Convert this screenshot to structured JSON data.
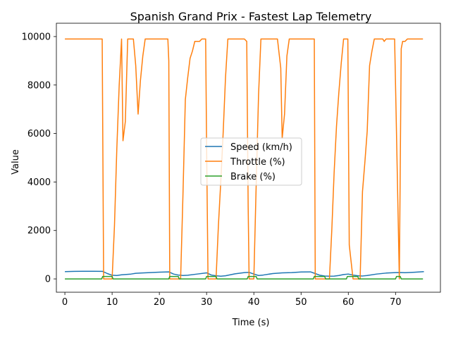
{
  "chart_data": {
    "type": "line",
    "title": "Spanish Grand Prix - Fastest Lap Telemetry",
    "xlabel": "Time (s)",
    "ylabel": "Value",
    "xlim": [
      -1.8,
      79.5
    ],
    "ylim": [
      -550,
      10550
    ],
    "xticks": [
      0,
      10,
      20,
      30,
      40,
      50,
      60,
      70
    ],
    "yticks": [
      0,
      2000,
      4000,
      6000,
      8000,
      10000
    ],
    "grid": false,
    "legend_position": "center-right",
    "series": [
      {
        "name": "Speed (km/h)",
        "color": "#1f77b4",
        "x": [
          0,
          2,
          4,
          6,
          8,
          9,
          10,
          11,
          12,
          14,
          15,
          16,
          18,
          20,
          22,
          23,
          24,
          25,
          26,
          28,
          30,
          31,
          32,
          33,
          34,
          36,
          38,
          39,
          40,
          41,
          42,
          44,
          46,
          48,
          50,
          52,
          53,
          54,
          55,
          56,
          57,
          58,
          59,
          60,
          61,
          62,
          63,
          64,
          66,
          68,
          70,
          71,
          72,
          74,
          76
        ],
        "y": [
          300,
          310,
          315,
          315,
          310,
          220,
          150,
          140,
          170,
          200,
          230,
          240,
          260,
          280,
          290,
          200,
          160,
          140,
          150,
          200,
          250,
          160,
          130,
          110,
          130,
          210,
          260,
          270,
          200,
          140,
          160,
          220,
          250,
          260,
          285,
          290,
          220,
          150,
          120,
          110,
          115,
          140,
          180,
          200,
          160,
          130,
          120,
          140,
          200,
          240,
          260,
          265,
          255,
          275,
          300
        ]
      },
      {
        "name": "Throttle (%)",
        "color": "#ff7f0e",
        "x": [
          0,
          2,
          4,
          6,
          7.9,
          8.2,
          9,
          10,
          10.5,
          11,
          11.5,
          12,
          12.3,
          12.8,
          13.3,
          14,
          14.5,
          15,
          15.5,
          16,
          16.5,
          17,
          18,
          19,
          20,
          21,
          21.8,
          22,
          22.2,
          23,
          24,
          24.5,
          25,
          25.5,
          26,
          26.5,
          27,
          27.5,
          28,
          28.5,
          29,
          29.5,
          29.8,
          30,
          30.3,
          31,
          32,
          32.5,
          33,
          33.5,
          34,
          34.5,
          35,
          36,
          37,
          38,
          38.5,
          38.8,
          39,
          40,
          40.5,
          41,
          41.5,
          42,
          42.5,
          43,
          44,
          45,
          45.7,
          46,
          46.5,
          47,
          47.5,
          48,
          49,
          50,
          51,
          52,
          52.8,
          53,
          54,
          55,
          55.5,
          56,
          56.5,
          57,
          57.5,
          58,
          58.5,
          59,
          59.5,
          59.9,
          60.2,
          61,
          62,
          62.5,
          63,
          63.5,
          64,
          64.5,
          65,
          65.5,
          66,
          67,
          67.3,
          67.6,
          68,
          69,
          69.8,
          70.1,
          70.5,
          70.8,
          71.2,
          71.5,
          72,
          72.5,
          73,
          74,
          75,
          75.8
        ],
        "y": [
          9900,
          9900,
          9900,
          9900,
          9900,
          0,
          0,
          0,
          2200,
          5400,
          8000,
          9900,
          5700,
          6500,
          9900,
          9900,
          9900,
          8800,
          6800,
          8200,
          9200,
          9900,
          9900,
          9900,
          9900,
          9900,
          9900,
          9000,
          0,
          0,
          0,
          0,
          3500,
          7400,
          8300,
          9100,
          9400,
          9800,
          9800,
          9800,
          9900,
          9900,
          9900,
          5500,
          0,
          0,
          0,
          2200,
          4000,
          6000,
          8300,
          9900,
          9900,
          9900,
          9900,
          9900,
          9800,
          3000,
          0,
          0,
          3900,
          7600,
          9900,
          9900,
          9900,
          9900,
          9900,
          9900,
          8700,
          5800,
          6800,
          9200,
          9900,
          9900,
          9900,
          9900,
          9900,
          9900,
          9900,
          0,
          0,
          0,
          0,
          0,
          2000,
          4400,
          6300,
          7700,
          8900,
          9900,
          9900,
          9900,
          1400,
          0,
          0,
          0,
          3600,
          4800,
          6100,
          8800,
          9400,
          9900,
          9900,
          9900,
          9900,
          9800,
          9900,
          9900,
          9900,
          7000,
          3000,
          0,
          9500,
          9800,
          9800,
          9900,
          9900,
          9900,
          9900,
          9900
        ]
      },
      {
        "name": "Brake (%)",
        "color": "#2ca02c",
        "x": [
          0,
          7.8,
          8,
          10,
          10.2,
          22,
          22.2,
          24,
          24.2,
          29.8,
          30,
          32,
          32.2,
          38.6,
          38.8,
          40.5,
          40.7,
          52.6,
          52.8,
          55,
          55.2,
          59.6,
          59.8,
          62,
          62.2,
          70,
          70.2,
          71,
          71.2,
          75.8
        ],
        "y": [
          0,
          0,
          100,
          100,
          0,
          0,
          100,
          100,
          0,
          0,
          100,
          100,
          0,
          0,
          100,
          100,
          0,
          0,
          100,
          100,
          0,
          0,
          100,
          100,
          0,
          0,
          100,
          100,
          0,
          0
        ]
      }
    ]
  }
}
